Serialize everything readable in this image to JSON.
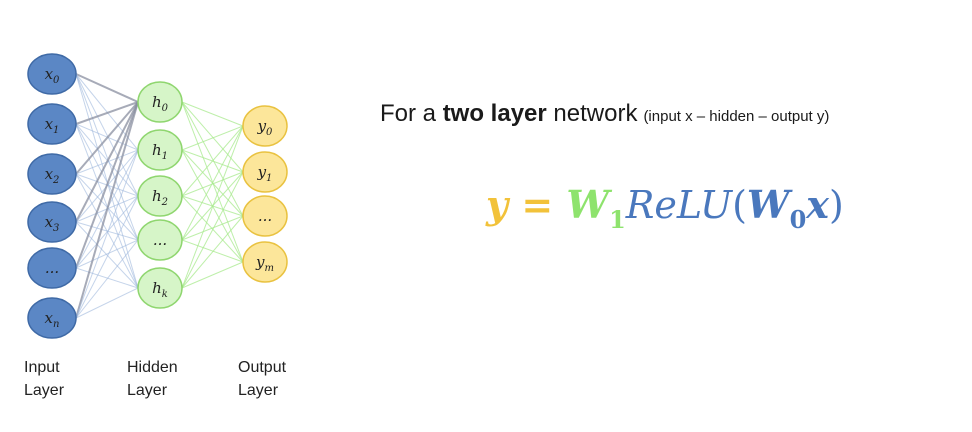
{
  "network": {
    "input_nodes": [
      {
        "base": "x",
        "sub": "0"
      },
      {
        "base": "x",
        "sub": "1"
      },
      {
        "base": "x",
        "sub": "2"
      },
      {
        "base": "x",
        "sub": "3"
      },
      {
        "base": "...",
        "sub": ""
      },
      {
        "base": "x",
        "sub": "n"
      }
    ],
    "hidden_nodes": [
      {
        "base": "h",
        "sub": "0"
      },
      {
        "base": "h",
        "sub": "1"
      },
      {
        "base": "h",
        "sub": "2"
      },
      {
        "base": "...",
        "sub": ""
      },
      {
        "base": "h",
        "sub": "k"
      }
    ],
    "output_nodes": [
      {
        "base": "y",
        "sub": "0"
      },
      {
        "base": "y",
        "sub": "1"
      },
      {
        "base": "...",
        "sub": ""
      },
      {
        "base": "y",
        "sub": "m"
      }
    ],
    "labels": {
      "input": [
        "Input",
        "Layer"
      ],
      "hidden": [
        "Hidden",
        "Layer"
      ],
      "output": [
        "Output",
        "Layer"
      ]
    },
    "colors": {
      "input_fill": "#5b87c5",
      "input_stroke": "#3f6aa6",
      "hidden_fill": "#d6f5c8",
      "hidden_stroke": "#8fd66f",
      "output_fill": "#fce69a",
      "output_stroke": "#e9c240",
      "edge_input_hidden": "#9fb8dc",
      "edge_input_h0": "#8a8fa0",
      "edge_hidden_output": "#a8ea8e"
    }
  },
  "headline": {
    "lead": "For a ",
    "bold": "two layer",
    "after": " network",
    "note": "(input x –  hidden – output y)"
  },
  "formula": {
    "y": "y",
    "eq": " = ",
    "w1": "W",
    "w1_sub": "1",
    "relu": "ReLU",
    "open": "(",
    "w0": "W",
    "w0_sub": "0",
    "x": "x",
    "close": ")"
  }
}
